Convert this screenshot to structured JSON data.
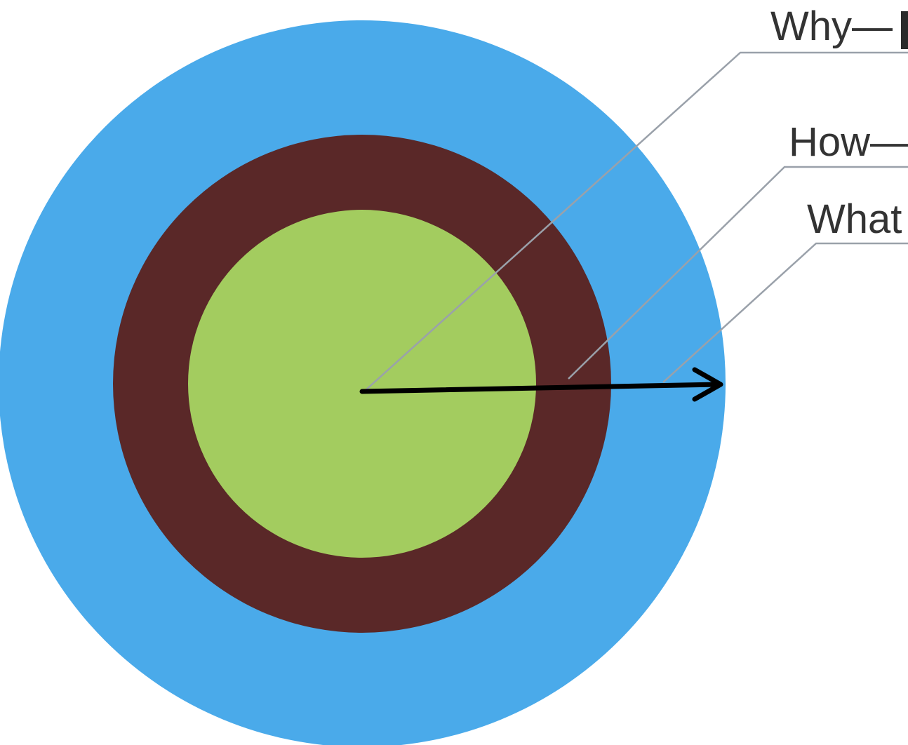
{
  "diagram": {
    "labels": {
      "why": "Why—",
      "how": "How—",
      "what": "What"
    },
    "colors": {
      "outer_ring": "#4aaaea",
      "middle_ring": "#5a2828",
      "inner_circle": "#a3cc5f",
      "leader_line": "#9aa1aa",
      "label_text": "#333333",
      "arrow": "#000000",
      "background": "#ffffff"
    },
    "icons": [
      "arrow-right-icon"
    ]
  }
}
